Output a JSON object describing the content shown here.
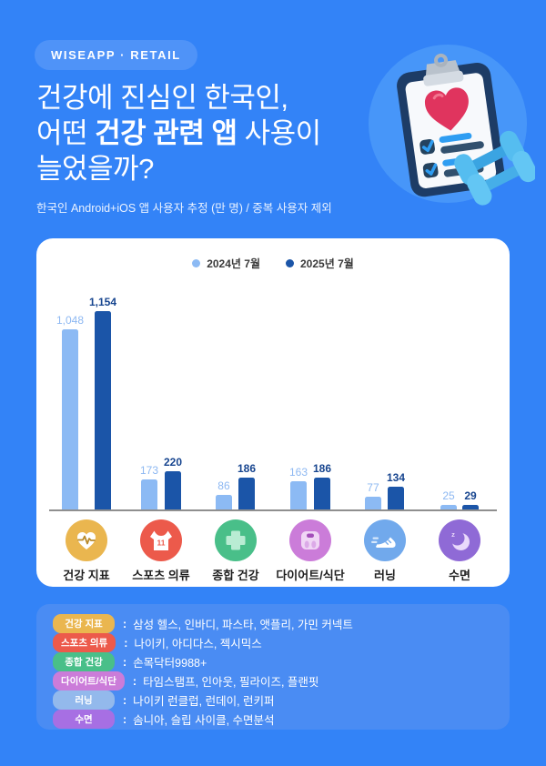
{
  "page": {
    "background": "#3383f7",
    "card_background": "#ffffff",
    "apps_card_background": "#4a8cf3",
    "axis_color": "#8f8f8f"
  },
  "header": {
    "badge": "WISEAPP · RETAIL",
    "title_line1": "건강에 진심인 한국인,",
    "title_line2_pre": "어떤 ",
    "title_line2_bold": "건강 관련 앱",
    "title_line2_post": " 사용이",
    "title_line3": "늘었을까?",
    "subtitle": "한국인 Android+iOS 앱 사용자 추정 (만 명) / 중복 사용자 제외"
  },
  "chart_data": {
    "type": "bar",
    "title": "",
    "unit": "만 명",
    "categories": [
      "건강 지표",
      "스포츠 의류",
      "종합 건강",
      "다이어트/식단",
      "러닝",
      "수면"
    ],
    "series": [
      {
        "name": "2024년 7월",
        "color": "#8cbaf4",
        "label_color": "#8db8f2",
        "values": [
          1048,
          173,
          86,
          163,
          77,
          25
        ]
      },
      {
        "name": "2025년 7월",
        "color": "#1b55a8",
        "label_color": "#17458f",
        "values": [
          1154,
          220,
          186,
          186,
          134,
          29
        ]
      }
    ],
    "legend_position": "top",
    "grid": false,
    "ylim": [
      0,
      1200
    ]
  },
  "categories_meta": [
    {
      "icon": "heart-pulse-icon",
      "bg": "#eab64f"
    },
    {
      "icon": "sports-jersey-icon",
      "bg": "#ec5a4b"
    },
    {
      "icon": "medical-cross-icon",
      "bg": "#49bf89"
    },
    {
      "icon": "weight-scale-icon",
      "bg": "#cb7cd9"
    },
    {
      "icon": "running-shoe-icon",
      "bg": "#71a9ec"
    },
    {
      "icon": "sleep-moon-icon",
      "bg": "#8f6ad6"
    }
  ],
  "app_legend": {
    "separator": ":",
    "rows": [
      {
        "label": "건강 지표",
        "color": "#eab64f",
        "apps": "삼성 헬스, 인바디, 파스타, 앳플리, 가민 커넥트"
      },
      {
        "label": "스포츠 의류",
        "color": "#ec5a4b",
        "apps": "나이키, 아디다스, 젝시믹스"
      },
      {
        "label": "종합 건강",
        "color": "#49bf89",
        "apps": "손목닥터9988+"
      },
      {
        "label": "다이어트/식단",
        "color": "#cb7cd9",
        "apps": "타임스탬프, 인아웃, 필라이즈, 플랜핏"
      },
      {
        "label": "러닝",
        "color": "#93b9ec",
        "apps": "나이키 런클럽, 런데이, 런키퍼"
      },
      {
        "label": "수면",
        "color": "#a76fe3",
        "apps": "솜니아, 슬립 사이클, 수면분석"
      }
    ]
  }
}
